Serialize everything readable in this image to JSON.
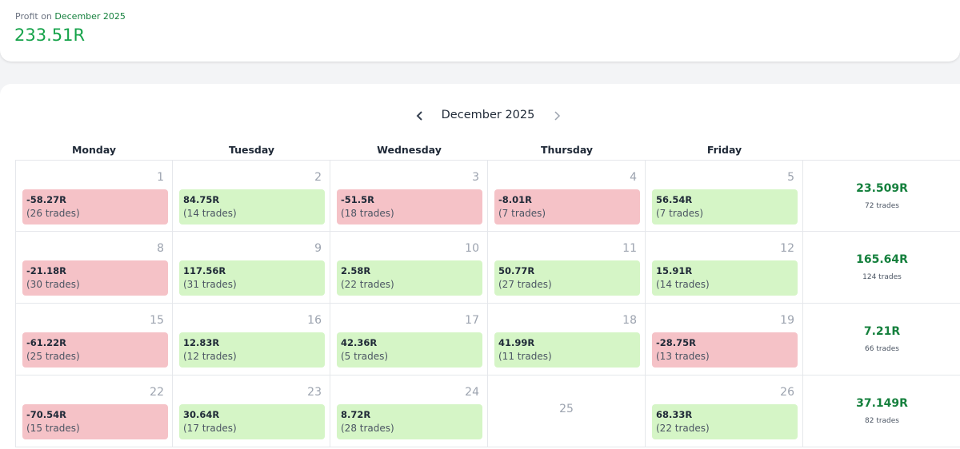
{
  "header": {
    "label": "Profit on",
    "period": "December 2025",
    "value": "233.51R"
  },
  "calendar": {
    "title": "December 2025",
    "weekdays": [
      "Monday",
      "Tuesday",
      "Wednesday",
      "Thursday",
      "Friday"
    ],
    "weeks": [
      {
        "days": [
          {
            "day": 1,
            "pnl": "-58.27R",
            "trades": "(26 trades)"
          },
          {
            "day": 2,
            "pnl": "84.75R",
            "trades": "(14 trades)"
          },
          {
            "day": 3,
            "pnl": "-51.5R",
            "trades": "(18 trades)"
          },
          {
            "day": 4,
            "pnl": "-8.01R",
            "trades": "(7 trades)"
          },
          {
            "day": 5,
            "pnl": "56.54R",
            "trades": "(7 trades)"
          }
        ],
        "total": {
          "pnl": "23.509R",
          "trades": "72 trades"
        }
      },
      {
        "days": [
          {
            "day": 8,
            "pnl": "-21.18R",
            "trades": "(30 trades)"
          },
          {
            "day": 9,
            "pnl": "117.56R",
            "trades": "(31 trades)"
          },
          {
            "day": 10,
            "pnl": "2.58R",
            "trades": "(22 trades)"
          },
          {
            "day": 11,
            "pnl": "50.77R",
            "trades": "(27 trades)"
          },
          {
            "day": 12,
            "pnl": "15.91R",
            "trades": "(14 trades)"
          }
        ],
        "total": {
          "pnl": "165.64R",
          "trades": "124 trades"
        }
      },
      {
        "days": [
          {
            "day": 15,
            "pnl": "-61.22R",
            "trades": "(25 trades)"
          },
          {
            "day": 16,
            "pnl": "12.83R",
            "trades": "(12 trades)"
          },
          {
            "day": 17,
            "pnl": "42.36R",
            "trades": "(5 trades)"
          },
          {
            "day": 18,
            "pnl": "41.99R",
            "trades": "(11 trades)"
          },
          {
            "day": 19,
            "pnl": "-28.75R",
            "trades": "(13 trades)"
          }
        ],
        "total": {
          "pnl": "7.21R",
          "trades": "66 trades"
        }
      },
      {
        "days": [
          {
            "day": 22,
            "pnl": "-70.54R",
            "trades": "(15 trades)"
          },
          {
            "day": 23,
            "pnl": "30.64R",
            "trades": "(17 trades)"
          },
          {
            "day": 24,
            "pnl": "8.72R",
            "trades": "(28 trades)"
          },
          {
            "day": 25
          },
          {
            "day": 26,
            "pnl": "68.33R",
            "trades": "(22 trades)"
          }
        ],
        "total": {
          "pnl": "37.149R",
          "trades": "82 trades"
        }
      }
    ]
  }
}
